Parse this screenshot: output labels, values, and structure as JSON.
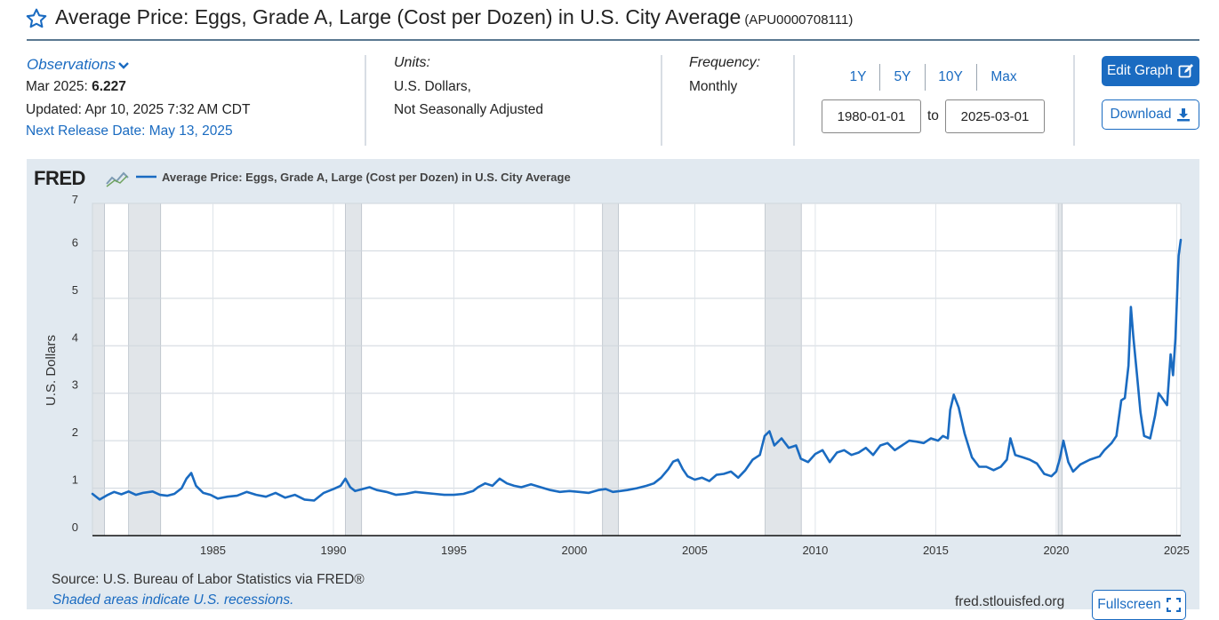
{
  "header": {
    "title": "Average Price: Eggs, Grade A, Large (Cost per Dozen) in U.S. City Average",
    "series_id": "(APU0000708111)"
  },
  "observations": {
    "label": "Observations",
    "period": "Mar 2025:",
    "value": "6.227",
    "updated": "Updated: Apr 10, 2025 7:32 AM CDT",
    "next_release": "Next Release Date: May 13, 2025"
  },
  "units": {
    "label": "Units:",
    "line1": "U.S. Dollars,",
    "line2": "Not Seasonally Adjusted"
  },
  "frequency": {
    "label": "Frequency:",
    "value": "Monthly"
  },
  "range": {
    "buttons": [
      "1Y",
      "5Y",
      "10Y",
      "Max"
    ],
    "start": "1980-01-01",
    "to_label": "to",
    "end": "2025-03-01"
  },
  "actions": {
    "edit": "Edit Graph",
    "download": "Download",
    "fullscreen": "Fullscreen"
  },
  "colors": {
    "accent": "#1a6bc1",
    "line": "#1a6bc1",
    "recession": "#e1e5e9",
    "panel": "#e1e9f0"
  },
  "chart_data": {
    "type": "line",
    "logo": "FRED",
    "title": "Average Price: Eggs, Grade A, Large (Cost per Dozen) in U.S. City Average",
    "xlabel": "",
    "ylabel": "U.S. Dollars",
    "xlim": [
      1980.0,
      2025.17
    ],
    "ylim": [
      0,
      7
    ],
    "y_ticks": [
      0,
      1,
      2,
      3,
      4,
      5,
      6,
      7
    ],
    "x_ticks": [
      1985,
      1990,
      1995,
      2000,
      2005,
      2010,
      2015,
      2020,
      2025
    ],
    "recessions": [
      [
        1980.0,
        1980.5
      ],
      [
        1981.5,
        1982.83
      ],
      [
        1990.5,
        1991.17
      ],
      [
        2001.17,
        2001.83
      ],
      [
        2007.92,
        2009.42
      ],
      [
        2020.08,
        2020.25
      ]
    ],
    "series": [
      {
        "name": "Average Price: Eggs, Grade A, Large (Cost per Dozen) in U.S. City Average",
        "points": [
          [
            1980.0,
            0.88
          ],
          [
            1980.3,
            0.76
          ],
          [
            1980.6,
            0.85
          ],
          [
            1980.9,
            0.92
          ],
          [
            1981.2,
            0.87
          ],
          [
            1981.5,
            0.93
          ],
          [
            1981.8,
            0.86
          ],
          [
            1982.1,
            0.9
          ],
          [
            1982.5,
            0.93
          ],
          [
            1982.8,
            0.86
          ],
          [
            1983.1,
            0.84
          ],
          [
            1983.4,
            0.88
          ],
          [
            1983.7,
            1.0
          ],
          [
            1983.9,
            1.2
          ],
          [
            1984.1,
            1.32
          ],
          [
            1984.3,
            1.05
          ],
          [
            1984.6,
            0.9
          ],
          [
            1984.9,
            0.86
          ],
          [
            1985.2,
            0.78
          ],
          [
            1985.6,
            0.82
          ],
          [
            1986.0,
            0.84
          ],
          [
            1986.4,
            0.92
          ],
          [
            1986.8,
            0.86
          ],
          [
            1987.2,
            0.82
          ],
          [
            1987.6,
            0.9
          ],
          [
            1988.0,
            0.8
          ],
          [
            1988.4,
            0.86
          ],
          [
            1988.8,
            0.76
          ],
          [
            1989.2,
            0.74
          ],
          [
            1989.6,
            0.9
          ],
          [
            1990.0,
            0.98
          ],
          [
            1990.3,
            1.05
          ],
          [
            1990.5,
            1.2
          ],
          [
            1990.7,
            1.02
          ],
          [
            1990.9,
            0.94
          ],
          [
            1991.2,
            0.98
          ],
          [
            1991.5,
            1.02
          ],
          [
            1991.8,
            0.96
          ],
          [
            1992.2,
            0.92
          ],
          [
            1992.6,
            0.86
          ],
          [
            1993.0,
            0.88
          ],
          [
            1993.4,
            0.92
          ],
          [
            1993.8,
            0.9
          ],
          [
            1994.2,
            0.88
          ],
          [
            1994.6,
            0.86
          ],
          [
            1995.0,
            0.86
          ],
          [
            1995.4,
            0.88
          ],
          [
            1995.8,
            0.94
          ],
          [
            1996.0,
            1.02
          ],
          [
            1996.3,
            1.1
          ],
          [
            1996.6,
            1.05
          ],
          [
            1996.9,
            1.2
          ],
          [
            1997.2,
            1.1
          ],
          [
            1997.5,
            1.05
          ],
          [
            1997.8,
            1.02
          ],
          [
            1998.2,
            1.08
          ],
          [
            1998.6,
            1.02
          ],
          [
            1999.0,
            0.96
          ],
          [
            1999.4,
            0.92
          ],
          [
            1999.8,
            0.94
          ],
          [
            2000.2,
            0.92
          ],
          [
            2000.6,
            0.9
          ],
          [
            2001.0,
            0.96
          ],
          [
            2001.3,
            0.98
          ],
          [
            2001.6,
            0.92
          ],
          [
            2001.9,
            0.94
          ],
          [
            2002.2,
            0.96
          ],
          [
            2002.6,
            1.0
          ],
          [
            2003.0,
            1.05
          ],
          [
            2003.3,
            1.1
          ],
          [
            2003.6,
            1.22
          ],
          [
            2003.9,
            1.4
          ],
          [
            2004.1,
            1.56
          ],
          [
            2004.3,
            1.6
          ],
          [
            2004.5,
            1.4
          ],
          [
            2004.7,
            1.25
          ],
          [
            2005.0,
            1.18
          ],
          [
            2005.3,
            1.22
          ],
          [
            2005.6,
            1.15
          ],
          [
            2005.9,
            1.28
          ],
          [
            2006.2,
            1.3
          ],
          [
            2006.5,
            1.35
          ],
          [
            2006.8,
            1.22
          ],
          [
            2007.1,
            1.38
          ],
          [
            2007.4,
            1.6
          ],
          [
            2007.7,
            1.7
          ],
          [
            2007.9,
            2.1
          ],
          [
            2008.1,
            2.2
          ],
          [
            2008.3,
            1.9
          ],
          [
            2008.6,
            2.05
          ],
          [
            2008.9,
            1.85
          ],
          [
            2009.2,
            1.9
          ],
          [
            2009.4,
            1.62
          ],
          [
            2009.7,
            1.55
          ],
          [
            2010.0,
            1.72
          ],
          [
            2010.3,
            1.8
          ],
          [
            2010.6,
            1.55
          ],
          [
            2010.9,
            1.75
          ],
          [
            2011.2,
            1.8
          ],
          [
            2011.5,
            1.7
          ],
          [
            2011.8,
            1.75
          ],
          [
            2012.1,
            1.85
          ],
          [
            2012.4,
            1.7
          ],
          [
            2012.7,
            1.9
          ],
          [
            2013.0,
            1.95
          ],
          [
            2013.3,
            1.8
          ],
          [
            2013.6,
            1.9
          ],
          [
            2013.9,
            2.0
          ],
          [
            2014.2,
            1.98
          ],
          [
            2014.5,
            1.95
          ],
          [
            2014.8,
            2.05
          ],
          [
            2015.1,
            2.0
          ],
          [
            2015.3,
            2.1
          ],
          [
            2015.5,
            2.05
          ],
          [
            2015.6,
            2.65
          ],
          [
            2015.75,
            2.97
          ],
          [
            2015.95,
            2.7
          ],
          [
            2016.2,
            2.15
          ],
          [
            2016.5,
            1.65
          ],
          [
            2016.8,
            1.45
          ],
          [
            2017.1,
            1.45
          ],
          [
            2017.4,
            1.38
          ],
          [
            2017.7,
            1.45
          ],
          [
            2017.95,
            1.6
          ],
          [
            2018.1,
            2.05
          ],
          [
            2018.3,
            1.7
          ],
          [
            2018.6,
            1.65
          ],
          [
            2018.9,
            1.6
          ],
          [
            2019.2,
            1.52
          ],
          [
            2019.5,
            1.3
          ],
          [
            2019.8,
            1.25
          ],
          [
            2020.0,
            1.35
          ],
          [
            2020.15,
            1.62
          ],
          [
            2020.3,
            2.0
          ],
          [
            2020.5,
            1.55
          ],
          [
            2020.7,
            1.35
          ],
          [
            2021.0,
            1.5
          ],
          [
            2021.4,
            1.6
          ],
          [
            2021.8,
            1.67
          ],
          [
            2022.0,
            1.8
          ],
          [
            2022.3,
            1.95
          ],
          [
            2022.5,
            2.1
          ],
          [
            2022.7,
            2.85
          ],
          [
            2022.85,
            2.9
          ],
          [
            2023.0,
            3.58
          ],
          [
            2023.1,
            4.82
          ],
          [
            2023.2,
            4.2
          ],
          [
            2023.35,
            3.4
          ],
          [
            2023.5,
            2.6
          ],
          [
            2023.65,
            2.1
          ],
          [
            2023.9,
            2.05
          ],
          [
            2024.1,
            2.52
          ],
          [
            2024.25,
            3.0
          ],
          [
            2024.4,
            2.9
          ],
          [
            2024.6,
            2.75
          ],
          [
            2024.75,
            3.82
          ],
          [
            2024.85,
            3.38
          ],
          [
            2024.95,
            4.15
          ],
          [
            2025.08,
            5.9
          ],
          [
            2025.17,
            6.23
          ]
        ]
      }
    ]
  },
  "footer": {
    "source": "Source: U.S. Bureau of Labor Statistics via FRED®",
    "shaded_note": "Shaded areas indicate U.S. recessions.",
    "site": "fred.stlouisfed.org"
  }
}
